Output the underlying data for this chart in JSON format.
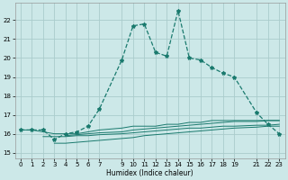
{
  "title": "",
  "xlabel": "Humidex (Indice chaleur)",
  "bg_color": "#cce8e8",
  "grid_color": "#aacccc",
  "line_color": "#1a7a6e",
  "xlim": [
    -0.5,
    23.5
  ],
  "ylim": [
    14.7,
    22.9
  ],
  "yticks": [
    15,
    16,
    17,
    18,
    19,
    20,
    21,
    22
  ],
  "xtick_positions": [
    0,
    1,
    2,
    3,
    4,
    5,
    6,
    7,
    9,
    10,
    11,
    12,
    13,
    14,
    15,
    16,
    17,
    18,
    19,
    21,
    22,
    23
  ],
  "xtick_labels": [
    "0",
    "1",
    "2",
    "3",
    "4",
    "5",
    "6",
    "7",
    "9",
    "10",
    "11",
    "12",
    "13",
    "14",
    "15",
    "16",
    "17",
    "18",
    "19",
    "21",
    "22",
    "23"
  ],
  "main_x": [
    0,
    1,
    2,
    3,
    4,
    5,
    6,
    7,
    9,
    10,
    11,
    12,
    13,
    14,
    15,
    16,
    17,
    18,
    19,
    21,
    22,
    23
  ],
  "main_y": [
    16.2,
    16.2,
    16.2,
    15.7,
    16.0,
    16.1,
    16.4,
    17.3,
    19.9,
    21.7,
    21.8,
    20.3,
    20.1,
    22.5,
    20.0,
    19.9,
    19.5,
    19.2,
    19.0,
    17.1,
    16.5,
    16.0
  ],
  "flat_lines_x": [
    [
      0,
      1,
      2,
      3,
      4,
      5,
      6,
      7,
      9,
      10,
      11,
      12,
      13,
      14,
      15,
      16,
      17,
      18,
      19,
      21,
      22,
      23
    ],
    [
      2,
      3,
      4,
      5,
      6,
      7,
      9,
      10,
      11,
      12,
      13,
      14,
      15,
      16,
      17,
      18,
      19,
      21,
      22,
      23
    ],
    [
      3,
      4,
      5,
      6,
      7,
      9,
      10,
      11,
      12,
      13,
      14,
      15,
      16,
      17,
      18,
      19,
      21,
      22,
      23
    ],
    [
      4,
      5,
      6,
      7,
      9,
      10,
      11,
      12,
      13,
      14,
      15,
      16,
      17,
      18,
      19,
      21,
      22,
      23
    ]
  ],
  "flat_lines_y": [
    [
      16.2,
      16.2,
      16.1,
      16.0,
      16.0,
      16.0,
      16.1,
      16.2,
      16.3,
      16.4,
      16.4,
      16.4,
      16.5,
      16.5,
      16.6,
      16.6,
      16.7,
      16.7,
      16.7,
      16.7,
      16.7,
      16.7
    ],
    [
      15.85,
      15.85,
      15.85,
      15.9,
      15.9,
      15.95,
      16.0,
      16.05,
      16.1,
      16.15,
      16.2,
      16.25,
      16.3,
      16.3,
      16.35,
      16.4,
      16.4,
      16.45,
      16.45,
      16.5
    ],
    [
      15.5,
      15.5,
      15.55,
      15.6,
      15.65,
      15.75,
      15.8,
      15.9,
      15.95,
      16.0,
      16.05,
      16.1,
      16.15,
      16.2,
      16.25,
      16.3,
      16.35,
      16.4,
      16.4
    ],
    [
      15.9,
      15.95,
      16.0,
      16.05,
      16.1,
      16.2,
      16.25,
      16.3,
      16.35,
      16.4,
      16.45,
      16.5,
      16.55,
      16.6,
      16.65,
      16.65,
      16.7,
      16.7
    ]
  ]
}
